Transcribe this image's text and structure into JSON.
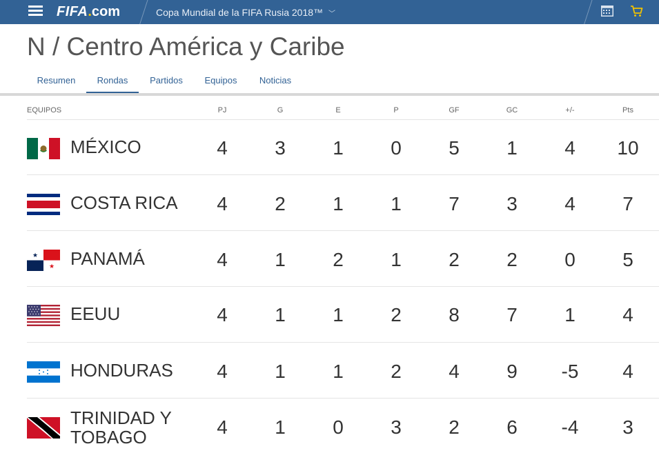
{
  "header": {
    "logo": {
      "fifa": "FIFA",
      "dot": ".",
      "com": "com"
    },
    "tournament": "Copa Mundial de la FIFA Rusia 2018™",
    "icons": [
      "menu-icon",
      "chevron-down-icon",
      "calendar-icon",
      "cart-icon"
    ],
    "brand_color": "#326295",
    "cart_color": "#f2c200"
  },
  "page": {
    "title": "N / Centro América y Caribe"
  },
  "tabs": [
    {
      "label": "Resumen",
      "active": false
    },
    {
      "label": "Rondas",
      "active": true
    },
    {
      "label": "Partidos",
      "active": false
    },
    {
      "label": "Equipos",
      "active": false
    },
    {
      "label": "Noticias",
      "active": false
    }
  ],
  "table": {
    "columns": [
      "EQUIPOS",
      "PJ",
      "G",
      "E",
      "P",
      "GF",
      "GC",
      "+/-",
      "Pts"
    ],
    "rows": [
      {
        "team": "MÉXICO",
        "flag": "mexico-flag",
        "pj": "4",
        "g": "3",
        "e": "1",
        "p": "0",
        "gf": "5",
        "gc": "1",
        "diff": "4",
        "pts": "10"
      },
      {
        "team": "COSTA RICA",
        "flag": "costa-rica-flag",
        "pj": "4",
        "g": "2",
        "e": "1",
        "p": "1",
        "gf": "7",
        "gc": "3",
        "diff": "4",
        "pts": "7"
      },
      {
        "team": "PANAMÁ",
        "flag": "panama-flag",
        "pj": "4",
        "g": "1",
        "e": "2",
        "p": "1",
        "gf": "2",
        "gc": "2",
        "diff": "0",
        "pts": "5"
      },
      {
        "team": "EEUU",
        "flag": "usa-flag",
        "pj": "4",
        "g": "1",
        "e": "1",
        "p": "2",
        "gf": "8",
        "gc": "7",
        "diff": "1",
        "pts": "4"
      },
      {
        "team": "HONDURAS",
        "flag": "honduras-flag",
        "pj": "4",
        "g": "1",
        "e": "1",
        "p": "2",
        "gf": "4",
        "gc": "9",
        "diff": "-5",
        "pts": "4"
      },
      {
        "team_line1": "TRINIDAD Y",
        "team_line2": "TOBAGO",
        "flag": "trinidad-tobago-flag",
        "pj": "4",
        "g": "1",
        "e": "0",
        "p": "3",
        "gf": "2",
        "gc": "6",
        "diff": "-4",
        "pts": "3"
      }
    ]
  }
}
